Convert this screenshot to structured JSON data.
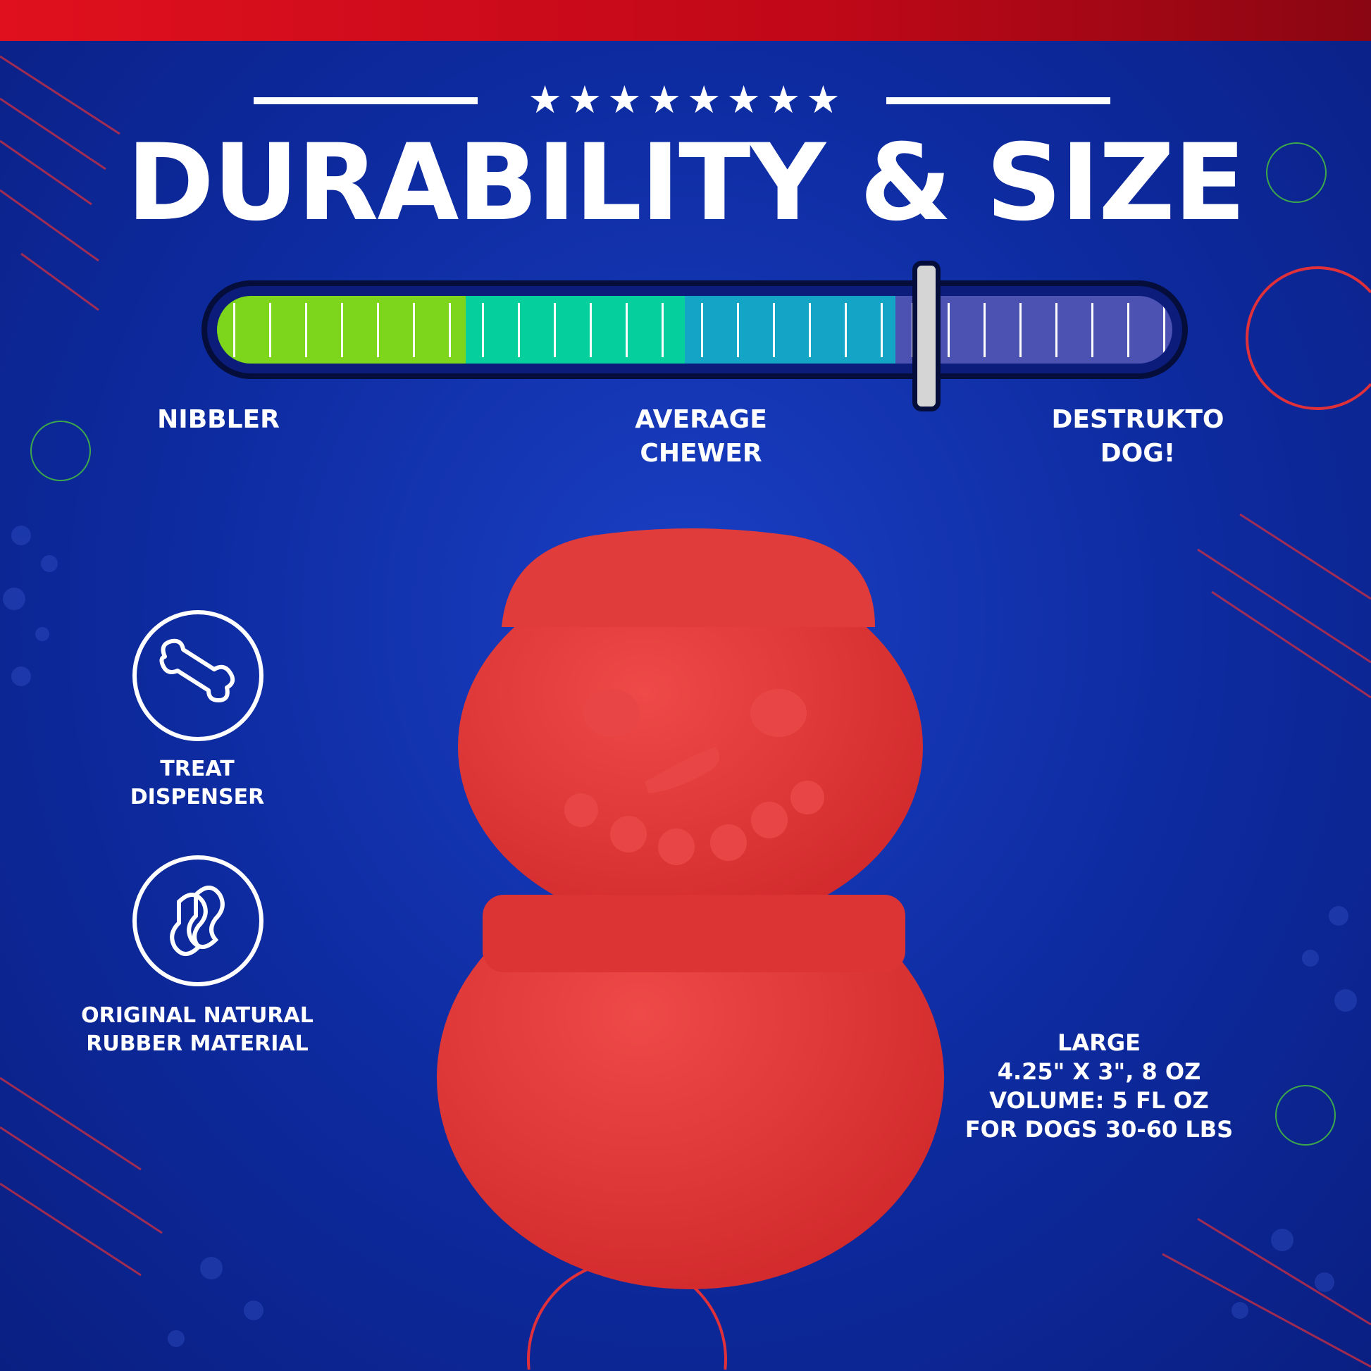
{
  "header": {
    "stars": "★★★★★★★★",
    "title": "DURABILITY & SIZE"
  },
  "durability_meter": {
    "level_fraction": 0.74,
    "segments": [
      {
        "color": "#7ed61c"
      },
      {
        "color": "#05cf9c"
      },
      {
        "color": "#14a5c6"
      },
      {
        "color": "#4c52b2"
      }
    ],
    "labels": {
      "low": "NIBBLER",
      "mid_line1": "AVERAGE",
      "mid_line2": "CHEWER",
      "high_line1": "DESTRUKTO",
      "high_line2": "DOG!"
    }
  },
  "features": [
    {
      "icon": "bone-icon",
      "line1": "TREAT",
      "line2": "DISPENSER"
    },
    {
      "icon": "rubber-drop-icon",
      "line1": "ORIGINAL NATURAL",
      "line2": "RUBBER MATERIAL"
    }
  ],
  "size_info": {
    "size": "LARGE",
    "dimensions": "4.25\" X 3\", 8 OZ",
    "volume": "VOLUME: 5 FL OZ",
    "dogs": "FOR DOGS 30-60 LBS"
  },
  "colors": {
    "background": "#0d2a9e",
    "top_band": "#d00c1a",
    "product": "#e23a3a"
  }
}
